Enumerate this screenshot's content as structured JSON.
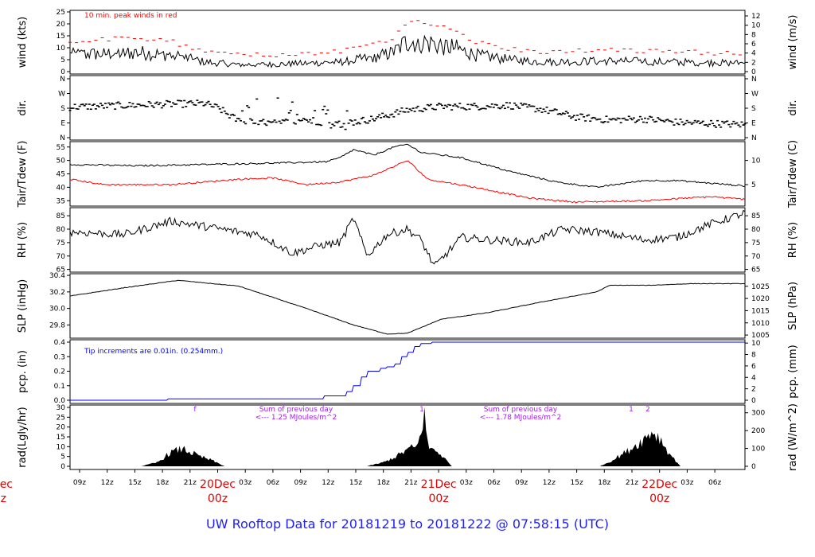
{
  "title": "UW Rooftop Data for 20181219  to  20181222 @ 07:58:15  (UTC)",
  "colors": {
    "main": "#000000",
    "red": "#ff0000",
    "blue": "#0000ff",
    "purple": "#a020f0",
    "day": "#e00000",
    "title": "#2020ff"
  },
  "x_axis": {
    "hour_labels": [
      "09z",
      "12z",
      "15z",
      "18z",
      "21z",
      "03z",
      "06z",
      "09z",
      "12z",
      "15z",
      "18z",
      "21z",
      "03z",
      "06z",
      "09z",
      "12z",
      "15z",
      "18z",
      "21z",
      "03z",
      "06z"
    ],
    "day_labels": [
      [
        "20Dec",
        "00z"
      ],
      [
        "21Dec",
        "00z"
      ],
      [
        "22Dec",
        "00z"
      ]
    ],
    "cut_left_labels": [
      "ec",
      "z"
    ]
  },
  "chart_data": [
    {
      "id": "wind",
      "type": "line",
      "ylabel_left": "wind (kts)",
      "ylabel_right": "wind (m/s)",
      "left_ticks": [
        "25",
        "20",
        "15",
        "10",
        "5",
        "0"
      ],
      "right_ticks": [
        "12",
        "10",
        "8",
        "6",
        "4",
        "2",
        "0"
      ],
      "annotation": "10 min. peak winds in red",
      "series": [
        {
          "name": "10 min. peak winds",
          "color": "red"
        }
      ],
      "ylim": [
        0,
        25
      ]
    },
    {
      "id": "dir",
      "type": "scatter",
      "ylabel_left": "dir.",
      "ylabel_right": "dir.",
      "left_ticks": [
        "N",
        "W",
        "S",
        "E",
        "N"
      ],
      "right_ticks": [
        "N",
        "W",
        "S",
        "E",
        "N"
      ]
    },
    {
      "id": "temp",
      "type": "line",
      "ylabel_left": "Tair/Tdew (F)",
      "ylabel_right": "Tair/Tdew (C)",
      "left_ticks": [
        "55",
        "50",
        "45",
        "40",
        "35"
      ],
      "right_ticks": [
        "10",
        "5"
      ],
      "ylim": [
        33,
        57
      ]
    },
    {
      "id": "rh",
      "type": "line",
      "ylabel_left": "RH (%)",
      "ylabel_right": "RH (%)",
      "left_ticks": [
        "85",
        "80",
        "75",
        "70",
        "65"
      ],
      "right_ticks": [
        "85",
        "80",
        "75",
        "70",
        "65"
      ],
      "ylim": [
        64,
        88
      ]
    },
    {
      "id": "slp",
      "type": "line",
      "ylabel_left": "SLP (inHg)",
      "ylabel_right": "SLP (hPa)",
      "left_ticks": [
        "30.4",
        "30.2",
        "30.0",
        "29.8"
      ],
      "right_ticks": [
        "1025",
        "1020",
        "1015",
        "1010",
        "1005"
      ],
      "ylim": [
        29.64,
        30.42
      ]
    },
    {
      "id": "pcp",
      "type": "line",
      "ylabel_left": "pcp. (in)",
      "ylabel_right": "pcp. (mm)",
      "left_ticks": [
        "0.4",
        "0.3",
        "0.2",
        "0.1",
        "0.0"
      ],
      "right_ticks": [
        "10",
        "8",
        "6",
        "4",
        "2",
        "0"
      ],
      "annotation": "Tip increments are 0.01in. (0.254mm.)",
      "ylim": [
        0,
        0.4
      ]
    },
    {
      "id": "rad",
      "type": "area",
      "ylabel_left": "rad(Lgly/hr)",
      "ylabel_right": "rad (W/m^2)",
      "left_ticks": [
        "30",
        "25",
        "20",
        "15",
        "10",
        "5",
        "0"
      ],
      "right_ticks": [
        "300",
        "200",
        "100",
        "0"
      ],
      "ylim": [
        0,
        30
      ],
      "notes": [
        {
          "lines": [
            "Sum of previous day",
            "<--- 1.25 MJoules/m^2"
          ]
        },
        {
          "lines": [
            "Sum of previous day",
            "<--- 1.78 MJoules/m^2"
          ]
        }
      ],
      "marks": [
        "f",
        "1",
        "1",
        "2"
      ]
    }
  ]
}
